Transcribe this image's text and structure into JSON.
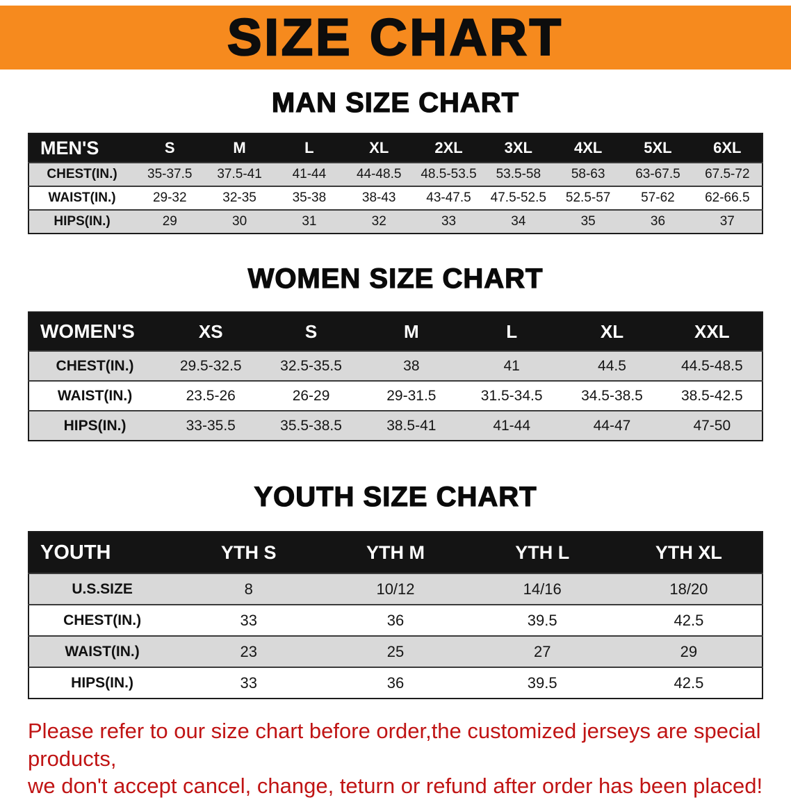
{
  "banner": {
    "title": "SIZE CHART"
  },
  "sections": [
    {
      "heading": "MAN SIZE CHART",
      "corner": "MEN'S",
      "columns": [
        "S",
        "M",
        "L",
        "XL",
        "2XL",
        "3XL",
        "4XL",
        "5XL",
        "6XL"
      ],
      "rows": [
        {
          "label": "CHEST(IN.)",
          "values": [
            "35-37.5",
            "37.5-41",
            "41-44",
            "44-48.5",
            "48.5-53.5",
            "53.5-58",
            "58-63",
            "63-67.5",
            "67.5-72"
          ]
        },
        {
          "label": "WAIST(IN.)",
          "values": [
            "29-32",
            "32-35",
            "35-38",
            "38-43",
            "43-47.5",
            "47.5-52.5",
            "52.5-57",
            "57-62",
            "62-66.5"
          ]
        },
        {
          "label": "HIPS(IN.)",
          "values": [
            "29",
            "30",
            "31",
            "32",
            "33",
            "34",
            "35",
            "36",
            "37"
          ]
        }
      ]
    },
    {
      "heading": "WOMEN SIZE CHART",
      "corner": "WOMEN'S",
      "columns": [
        "XS",
        "S",
        "M",
        "L",
        "XL",
        "XXL"
      ],
      "rows": [
        {
          "label": "CHEST(IN.)",
          "values": [
            "29.5-32.5",
            "32.5-35.5",
            "38",
            "41",
            "44.5",
            "44.5-48.5"
          ]
        },
        {
          "label": "WAIST(IN.)",
          "values": [
            "23.5-26",
            "26-29",
            "29-31.5",
            "31.5-34.5",
            "34.5-38.5",
            "38.5-42.5"
          ]
        },
        {
          "label": "HIPS(IN.)",
          "values": [
            "33-35.5",
            "35.5-38.5",
            "38.5-41",
            "41-44",
            "44-47",
            "47-50"
          ]
        }
      ]
    },
    {
      "heading": "YOUTH SIZE CHART",
      "corner": "YOUTH",
      "columns": [
        "YTH S",
        "YTH M",
        "YTH L",
        "YTH XL"
      ],
      "rows": [
        {
          "label": "U.S.SIZE",
          "values": [
            "8",
            "10/12",
            "14/16",
            "18/20"
          ]
        },
        {
          "label": "CHEST(IN.)",
          "values": [
            "33",
            "36",
            "39.5",
            "42.5"
          ]
        },
        {
          "label": "WAIST(IN.)",
          "values": [
            "23",
            "25",
            "27",
            "29"
          ]
        },
        {
          "label": "HIPS(IN.)",
          "values": [
            "33",
            "36",
            "39.5",
            "42.5"
          ]
        }
      ]
    }
  ],
  "disclaimer": {
    "line1": "Please refer to our size chart before order,the customized jerseys are special products,",
    "line2": "we don't accept cancel, change, teturn or refund after order has been placed!"
  },
  "colors": {
    "banner_orange": "#F68A1E",
    "table_header_black": "#141414",
    "row_gray": "#d9d9d9",
    "disclaimer_red": "#c01414"
  }
}
